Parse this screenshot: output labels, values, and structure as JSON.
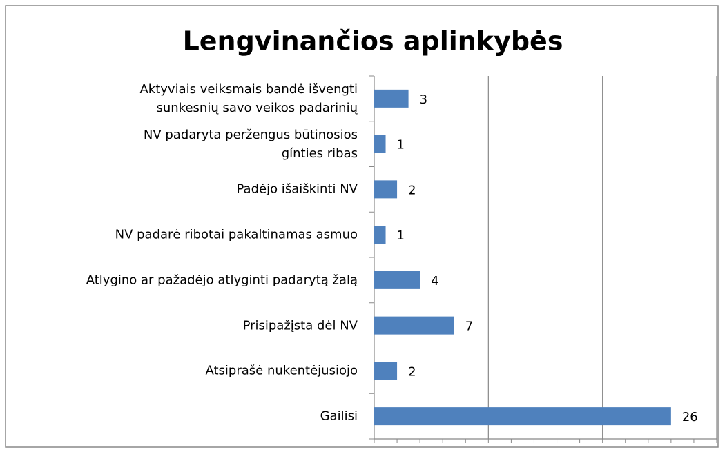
{
  "chart_data": {
    "type": "hbar",
    "title": "Lengvinančios aplinkybės",
    "categories": [
      "Aktyviais veiksmais bandė išvengti\nsunkesnių savo veikos padarinių",
      "NV padaryta peržengus būtinosios\ngínties ribas",
      "Padėjo išaiškinti NV",
      "NV padarė ribotai pakaltinamas asmuo",
      "Atlygino ar pažadėjo  atlyginti padarytą žalą",
      "Prisipažįsta dėl NV",
      "Atsiprašė nukentėjusiojo",
      "Gailisi"
    ],
    "values": [
      3,
      1,
      2,
      1,
      4,
      7,
      2,
      26
    ],
    "color": "#4f81bd",
    "xlim": [
      0,
      30
    ],
    "xticks": [
      0,
      2,
      4,
      6,
      8,
      10,
      12,
      14,
      16,
      18,
      20,
      22,
      24,
      26,
      28,
      30
    ],
    "xgrid": [
      10,
      20,
      30
    ]
  }
}
